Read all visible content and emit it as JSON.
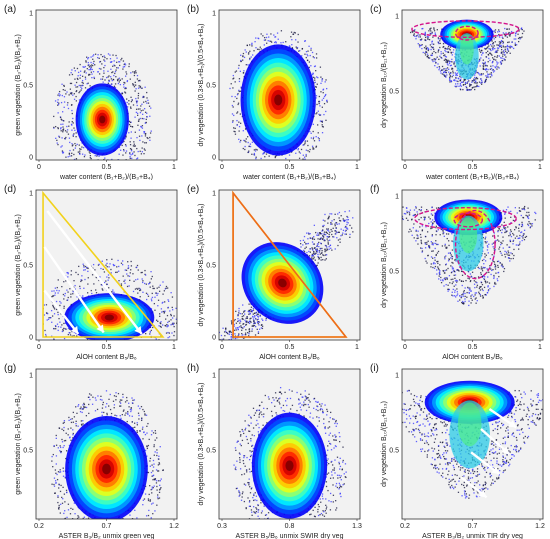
{
  "chart_data": [
    {
      "type": "scatter",
      "id": "a",
      "panel_label": "(a)",
      "xlabel": "water content (B₁+B₂)/(B₃+B₄)",
      "ylabel": "green vegetation (B₃-B₂)/(B₃+B₂)",
      "xticks": [
        "0",
        "0.5",
        "1"
      ],
      "yticks": [
        "0",
        "0.5",
        "1"
      ],
      "xlim": [
        0,
        1
      ],
      "ylim": [
        0,
        1
      ],
      "density": {
        "center": [
          0.47,
          0.27
        ],
        "sd": [
          0.07,
          0.09
        ],
        "halo": [
          0.22,
          0.28
        ]
      },
      "overlays": []
    },
    {
      "type": "scatter",
      "id": "b",
      "panel_label": "(b)",
      "xlabel": "water content (B₁+B₂)/(B₃+B₄)",
      "ylabel": "dry vegetation (0.3×B₄+B₅)/(0.5×B₄+B₆)",
      "xticks": [
        "0",
        "0.5",
        "1"
      ],
      "yticks": [
        "0",
        "0.5",
        "1"
      ],
      "xlim": [
        0,
        1
      ],
      "ylim": [
        0,
        1
      ],
      "density": {
        "center": [
          0.42,
          0.4
        ],
        "sd": [
          0.1,
          0.14
        ],
        "halo": [
          0.22,
          0.3
        ]
      },
      "overlays": []
    },
    {
      "type": "scatter",
      "id": "c",
      "panel_label": "(c)",
      "xlabel": "water content (B₁+B₂)/(B₃+B₄)",
      "ylabel": "dry vegetation B₁₀/(B₁₁+B₁₃)",
      "xticks": [
        "0",
        "0.5",
        "1"
      ],
      "yticks": [
        "0.5",
        "1"
      ],
      "xlim": [
        0,
        1
      ],
      "ylim": [
        0,
        1.1
      ],
      "density": {
        "center": [
          0.46,
          0.92
        ],
        "sd": [
          0.07,
          0.05
        ],
        "halo": [
          0.25,
          0.18
        ],
        "funnel": true
      },
      "overlays": [
        {
          "kind": "ellipse",
          "color": "#d4148c",
          "cx": 0.45,
          "cy": 0.96,
          "rx": 0.38,
          "ry": 0.06
        },
        {
          "kind": "ellipse",
          "color": "#d4148c",
          "cx": 0.46,
          "cy": 0.93,
          "rx": 0.08,
          "ry": 0.05
        }
      ]
    },
    {
      "type": "scatter",
      "id": "d",
      "panel_label": "(d)",
      "xlabel": "AlOH content B₅/B₆",
      "ylabel": "green vegetation (B₃-B₂)/(B₃+B₂)",
      "xticks": [
        "0",
        "0.5",
        "1"
      ],
      "yticks": [
        "0",
        "0.5",
        "1"
      ],
      "xlim": [
        0,
        1
      ],
      "ylim": [
        0,
        1
      ],
      "density": {
        "center": [
          0.52,
          0.15
        ],
        "sd": [
          0.12,
          0.06
        ],
        "halo": [
          0.3,
          0.25
        ]
      },
      "overlays": [
        {
          "kind": "polygon",
          "color": "#f2d21c",
          "points": [
            [
              0.05,
              0.98
            ],
            [
              0.05,
              0.02
            ],
            [
              0.9,
              0.02
            ]
          ]
        },
        {
          "kind": "arrow",
          "color": "#ffffff",
          "from": [
            0.08,
            0.86
          ],
          "to": [
            0.75,
            0.04
          ]
        },
        {
          "kind": "arrow",
          "color": "#ffffff",
          "from": [
            0.06,
            0.62
          ],
          "to": [
            0.48,
            0.05
          ]
        },
        {
          "kind": "arrow",
          "color": "#ffffff",
          "from": [
            0.06,
            0.33
          ],
          "to": [
            0.3,
            0.04
          ]
        }
      ]
    },
    {
      "type": "scatter",
      "id": "e",
      "panel_label": "(e)",
      "xlabel": "AlOH content B₅/B₆",
      "ylabel": "dry vegetation (0.3×B₄+B₅)/(0.5×B₄+B₆)",
      "xticks": [
        "0",
        "0.5",
        "1"
      ],
      "yticks": [
        "0",
        "0.5",
        "1"
      ],
      "xlim": [
        0,
        1
      ],
      "ylim": [
        0,
        1
      ],
      "density": {
        "center": [
          0.45,
          0.38
        ],
        "sd": [
          0.1,
          0.11
        ],
        "halo": [
          0.3,
          0.3
        ],
        "diagonal": true
      },
      "overlays": [
        {
          "kind": "polygon",
          "color": "#f2d21c",
          "points": [
            [
              0.1,
              0.98
            ],
            [
              0.1,
              0.02
            ],
            [
              0.9,
              0.02
            ]
          ]
        },
        {
          "kind": "polygon",
          "color": "#ee6a1c",
          "points": [
            [
              0.1,
              0.98
            ],
            [
              0.1,
              0.02
            ],
            [
              0.9,
              0.02
            ]
          ]
        }
      ]
    },
    {
      "type": "scatter",
      "id": "f",
      "panel_label": "(f)",
      "xlabel": "AlOH content B₅/B₆",
      "ylabel": "dry vegetation B₁₀/(B₁₁+B₁₃)",
      "xticks": [
        "0",
        "0.5",
        "1"
      ],
      "yticks": [
        "0.5",
        "1"
      ],
      "xlim": [
        0,
        1
      ],
      "ylim": [
        0,
        1.1
      ],
      "density": {
        "center": [
          0.47,
          0.9
        ],
        "sd": [
          0.09,
          0.06
        ],
        "halo": [
          0.3,
          0.28
        ],
        "funnel": true
      },
      "overlays": [
        {
          "kind": "ellipse",
          "color": "#d4148c",
          "cx": 0.45,
          "cy": 0.89,
          "rx": 0.36,
          "ry": 0.08
        },
        {
          "kind": "ellipse",
          "color": "#d4148c",
          "cx": 0.52,
          "cy": 0.7,
          "rx": 0.14,
          "ry": 0.25
        },
        {
          "kind": "ellipse",
          "color": "#d4148c",
          "cx": 0.47,
          "cy": 0.88,
          "rx": 0.1,
          "ry": 0.05
        }
      ]
    },
    {
      "type": "scatter",
      "id": "g",
      "panel_label": "(g)",
      "xlabel": "ASTER B₃/B₂ unmix green veg",
      "ylabel": "green vegetation (B₃-B₂)/(B₃+B₂)",
      "xticks": [
        "0.2",
        "0.7",
        "1.2"
      ],
      "yticks": [
        "0.5",
        "1"
      ],
      "xlim": [
        0.2,
        1.2
      ],
      "ylim": [
        0.2,
        1.1
      ],
      "density": {
        "center": [
          0.7,
          0.5
        ],
        "sd": [
          0.11,
          0.12
        ],
        "halo": [
          0.25,
          0.3
        ]
      },
      "overlays": []
    },
    {
      "type": "scatter",
      "id": "h",
      "panel_label": "(h)",
      "xlabel": "ASTER B₅/B₆ unmix SWIR dry veg",
      "ylabel": "dry vegetation (0.3×B₄+B₅)/(0.5×B₄+B₆)",
      "xticks": [
        "0.3",
        "0.8",
        "1.3"
      ],
      "yticks": [
        "0.5",
        "1"
      ],
      "xlim": [
        0.3,
        1.3
      ],
      "ylim": [
        0.2,
        1.1
      ],
      "density": {
        "center": [
          0.8,
          0.52
        ],
        "sd": [
          0.1,
          0.12
        ],
        "halo": [
          0.25,
          0.3
        ]
      },
      "overlays": []
    },
    {
      "type": "scatter",
      "id": "i",
      "panel_label": "(i)",
      "xlabel": "ASTER B₃/B₂ unmix TIR dry veg",
      "ylabel": "dry vegetation B₁₀/(B₁₁+B₁₃)",
      "xticks": [
        "0.2",
        "0.7",
        "1.2"
      ],
      "yticks": [
        "0.5",
        "1"
      ],
      "xlim": [
        0.2,
        1.2
      ],
      "ylim": [
        0.2,
        1.1
      ],
      "density": {
        "center": [
          0.68,
          0.9
        ],
        "sd": [
          0.12,
          0.06
        ],
        "halo": [
          0.35,
          0.25
        ],
        "funnel": true
      },
      "overlays": [
        {
          "kind": "arrow",
          "color": "#ffffff",
          "from": [
            0.82,
            0.86
          ],
          "to": [
            1.01,
            0.75
          ]
        },
        {
          "kind": "arrow",
          "color": "#ffffff",
          "from": [
            0.76,
            0.74
          ],
          "to": [
            0.96,
            0.59
          ]
        },
        {
          "kind": "arrow",
          "color": "#ffffff",
          "from": [
            0.69,
            0.6
          ],
          "to": [
            0.89,
            0.47
          ]
        },
        {
          "kind": "arrow",
          "color": "#ffffff",
          "from": [
            0.62,
            0.45
          ],
          "to": [
            0.8,
            0.33
          ]
        }
      ]
    }
  ]
}
